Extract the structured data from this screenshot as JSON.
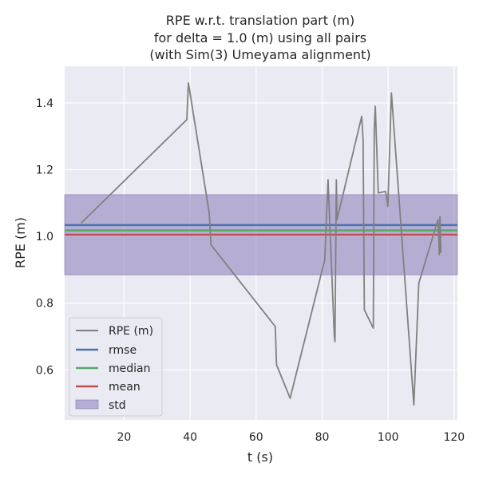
{
  "chart_data": {
    "type": "line",
    "title_lines": [
      "RPE w.r.t. translation part (m)",
      "for delta = 1.0 (m) using all pairs",
      "(with Sim(3) Umeyama alignment)"
    ],
    "xlabel": "t (s)",
    "ylabel": "RPE (m)",
    "xlim": [
      2.0,
      121.0
    ],
    "ylim": [
      0.45,
      1.51
    ],
    "xticks": [
      20,
      40,
      60,
      80,
      100,
      120
    ],
    "yticks": [
      0.6,
      0.8,
      1.0,
      1.2,
      1.4
    ],
    "grid": true,
    "background": "#eaeaf2",
    "series": [
      {
        "name": "RPE (m)",
        "color": "#808080",
        "points": [
          [
            7.0,
            1.04
          ],
          [
            39.0,
            1.35
          ],
          [
            39.5,
            1.46
          ],
          [
            45.8,
            1.07
          ],
          [
            46.3,
            0.975
          ],
          [
            65.8,
            0.73
          ],
          [
            66.2,
            0.615
          ],
          [
            70.3,
            0.515
          ],
          [
            80.8,
            0.93
          ],
          [
            81.8,
            1.17
          ],
          [
            83.7,
            0.7
          ],
          [
            83.9,
            0.685
          ],
          [
            84.3,
            1.17
          ],
          [
            84.5,
            1.05
          ],
          [
            92.0,
            1.36
          ],
          [
            92.4,
            1.29
          ],
          [
            92.8,
            0.78
          ],
          [
            95.5,
            0.725
          ],
          [
            95.8,
            1.32
          ],
          [
            96.1,
            1.39
          ],
          [
            97.0,
            1.13
          ],
          [
            99.2,
            1.135
          ],
          [
            99.9,
            1.09
          ],
          [
            101.0,
            1.43
          ],
          [
            107.8,
            0.495
          ],
          [
            109.3,
            0.86
          ],
          [
            115.1,
            1.05
          ],
          [
            115.5,
            0.945
          ],
          [
            115.7,
            1.06
          ],
          [
            116.0,
            0.95
          ]
        ]
      }
    ],
    "stats": {
      "rmse": {
        "name": "rmse",
        "value": 1.034,
        "color": "#4c72b0"
      },
      "median": {
        "name": "median",
        "value": 1.018,
        "color": "#55a868"
      },
      "mean": {
        "name": "mean",
        "value": 1.005,
        "color": "#c44e52"
      },
      "std": {
        "name": "std",
        "center": 1.005,
        "half_width": 0.12,
        "color": "#8172b2"
      }
    },
    "legend": {
      "position": "lower-left",
      "entries": [
        "RPE (m)",
        "rmse",
        "median",
        "mean",
        "std"
      ]
    }
  }
}
